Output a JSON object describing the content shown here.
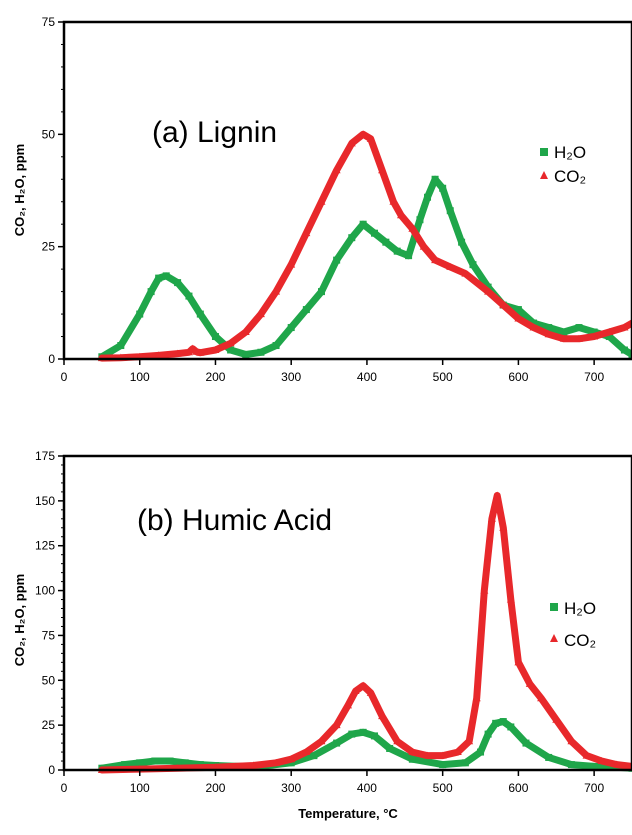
{
  "chart_data": [
    {
      "type": "line",
      "title": "(a) Lignin",
      "xlabel": "",
      "ylabel": "CO₂, H₂O, ppm",
      "xlim": [
        0,
        750
      ],
      "ylim": [
        0,
        75
      ],
      "xticks": [
        "0",
        "100",
        "200",
        "300",
        "400",
        "500",
        "600",
        "700"
      ],
      "yticks": [
        "0",
        "25",
        "50",
        "75"
      ],
      "grid": false,
      "legend_position": "top-right",
      "series": [
        {
          "name": "H₂O",
          "color": "#1fa64a",
          "marker": "square",
          "x": [
            50,
            75,
            100,
            115,
            125,
            135,
            150,
            165,
            180,
            200,
            220,
            240,
            260,
            280,
            300,
            320,
            340,
            360,
            380,
            395,
            410,
            425,
            440,
            455,
            470,
            480,
            490,
            500,
            510,
            525,
            540,
            560,
            580,
            600,
            620,
            640,
            660,
            680,
            700,
            720,
            740,
            750
          ],
          "y": [
            0.5,
            3,
            10,
            15,
            18,
            18.5,
            17,
            14,
            10,
            5,
            2,
            1,
            1.5,
            3,
            7,
            11,
            15,
            22,
            27,
            30,
            28,
            26,
            24,
            23,
            31,
            36,
            40,
            38,
            33,
            26,
            21,
            16,
            12,
            11,
            8,
            7,
            6,
            7,
            6,
            5,
            2,
            1
          ]
        },
        {
          "name": "CO₂",
          "color": "#e8282b",
          "marker": "triangle",
          "x": [
            50,
            75,
            100,
            125,
            150,
            165,
            170,
            175,
            180,
            200,
            220,
            240,
            260,
            280,
            300,
            320,
            340,
            360,
            380,
            395,
            405,
            420,
            435,
            445,
            460,
            475,
            490,
            510,
            530,
            560,
            580,
            600,
            620,
            640,
            660,
            680,
            700,
            720,
            740,
            750
          ],
          "y": [
            0.2,
            0.3,
            0.5,
            0.8,
            1.2,
            1.5,
            2.3,
            1.6,
            1.4,
            2,
            3.5,
            6,
            10,
            15,
            21,
            28,
            35,
            42,
            48,
            50,
            49,
            42,
            35,
            32,
            29,
            25,
            22,
            20.5,
            19,
            15,
            12,
            9,
            7,
            5.5,
            4.5,
            4.5,
            5,
            6,
            7,
            8
          ]
        }
      ]
    },
    {
      "type": "line",
      "title": "(b) Humic Acid",
      "xlabel": "Temperature, °C",
      "ylabel": "CO₂, H₂O, ppm",
      "xlim": [
        0,
        750
      ],
      "ylim": [
        0,
        175
      ],
      "xticks": [
        "0",
        "100",
        "200",
        "300",
        "400",
        "500",
        "600",
        "700"
      ],
      "yticks": [
        "0",
        "25",
        "50",
        "75",
        "100",
        "125",
        "150",
        "175"
      ],
      "grid": false,
      "legend_position": "right",
      "series": [
        {
          "name": "H₂O",
          "color": "#1fa64a",
          "marker": "square",
          "x": [
            50,
            80,
            100,
            120,
            140,
            160,
            180,
            200,
            230,
            260,
            300,
            330,
            360,
            380,
            395,
            410,
            430,
            460,
            500,
            530,
            550,
            560,
            570,
            580,
            590,
            610,
            640,
            670,
            700,
            730,
            750
          ],
          "y": [
            1,
            3,
            4,
            5,
            5,
            4,
            3,
            2.5,
            2,
            2,
            4,
            8,
            15,
            20,
            21,
            19,
            12,
            6,
            3,
            4,
            10,
            20,
            26,
            27,
            24,
            15,
            7,
            3,
            2,
            1.5,
            1
          ]
        },
        {
          "name": "CO₂",
          "color": "#e8282b",
          "marker": "triangle",
          "x": [
            50,
            100,
            150,
            200,
            250,
            280,
            300,
            320,
            340,
            360,
            375,
            385,
            395,
            405,
            420,
            440,
            460,
            480,
            500,
            520,
            535,
            545,
            555,
            565,
            572,
            580,
            590,
            600,
            615,
            630,
            650,
            670,
            690,
            710,
            730,
            750
          ],
          "y": [
            0,
            0.5,
            1,
            1.5,
            2.5,
            4,
            6,
            10,
            16,
            25,
            36,
            44,
            47,
            43,
            30,
            16,
            10,
            8,
            8,
            10,
            16,
            40,
            100,
            140,
            153,
            135,
            95,
            60,
            48,
            40,
            28,
            16,
            8,
            5,
            3,
            2
          ]
        }
      ]
    }
  ]
}
